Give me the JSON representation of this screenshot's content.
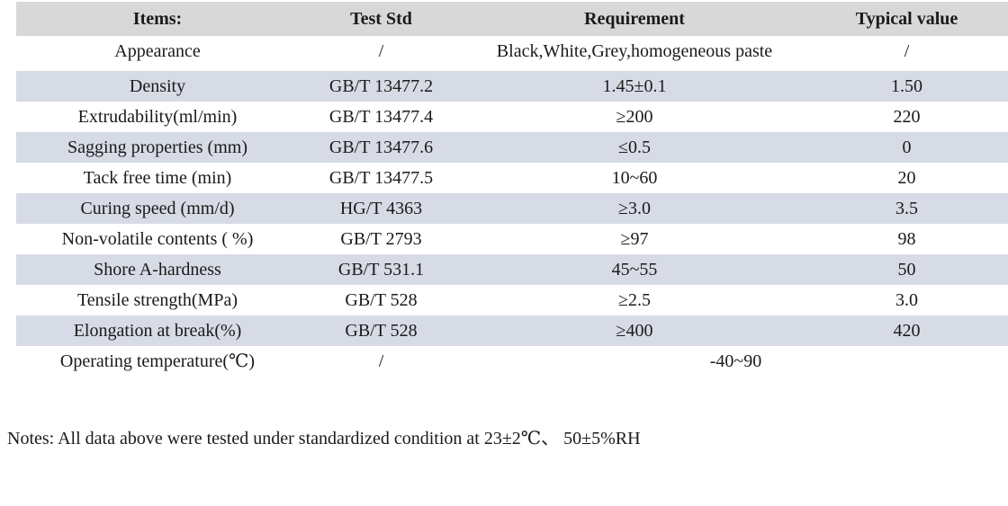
{
  "colors": {
    "header_bg": "#d8d8d8",
    "stripe_bg": "#d6dbe5",
    "text": "#1a1a1a",
    "page_bg": "#ffffff"
  },
  "table": {
    "headers": [
      "Items:",
      "Test Std",
      "Requirement",
      "Typical value"
    ],
    "rows": [
      {
        "item": "Appearance",
        "std": "/",
        "req": "Black,White,Grey,homogeneous paste",
        "typical": "/"
      },
      {
        "item": "Density",
        "std": "GB/T 13477.2",
        "req": "1.45±0.1",
        "typical": "1.50"
      },
      {
        "item": "Extrudability(ml/min)",
        "std": "GB/T 13477.4",
        "req": "≥200",
        "typical": "220"
      },
      {
        "item": "Sagging properties (mm)",
        "std": "GB/T 13477.6",
        "req": "≤0.5",
        "typical": "0"
      },
      {
        "item": "Tack free time (min)",
        "std": "GB/T 13477.5",
        "req": "10~60",
        "typical": "20"
      },
      {
        "item": "Curing speed (mm/d)",
        "std": "HG/T 4363",
        "req": "≥3.0",
        "typical": "3.5"
      },
      {
        "item": "Non-volatile contents ( %)",
        "std": "GB/T 2793",
        "req": "≥97",
        "typical": "98"
      },
      {
        "item": "Shore A-hardness",
        "std": "GB/T 531.1",
        "req": "45~55",
        "typical": "50"
      },
      {
        "item": "Tensile strength(MPa)",
        "std": "GB/T 528",
        "req": "≥2.5",
        "typical": "3.0"
      },
      {
        "item": "Elongation at break(%)",
        "std": "GB/T 528",
        "req": "≥400",
        "typical": "420"
      },
      {
        "item": "Operating temperature(℃)",
        "std": "/",
        "req": "-40~90",
        "typical": null,
        "req_colspan": 2
      }
    ]
  },
  "notes": "Notes: All data above were tested under standardized condition at 23±2℃、 50±5%RH"
}
